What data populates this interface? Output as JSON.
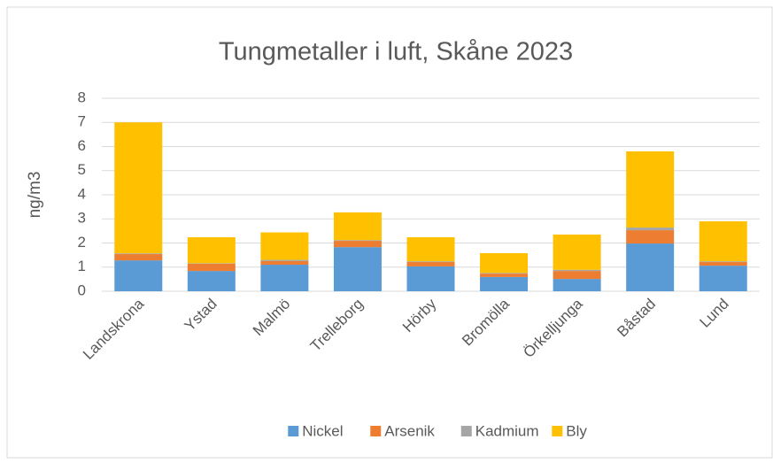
{
  "chart_data": {
    "type": "stacked_bar",
    "title": "Tungmetaller i luft, Skåne 2023",
    "y_label": "ng/m3",
    "categories": [
      "Landskrona",
      "Ystad",
      "Malmö",
      "Trelleborg",
      "Hörby",
      "Bromölla",
      "Örkelljunga",
      "Båstad",
      "Lund"
    ],
    "series": [
      {
        "name": "Nickel",
        "color": "#5b9bd5",
        "values": [
          1.28,
          0.84,
          1.1,
          1.83,
          1.03,
          0.59,
          0.51,
          1.98,
          1.06
        ]
      },
      {
        "name": "Arsenik",
        "color": "#ed7d31",
        "values": [
          0.26,
          0.3,
          0.15,
          0.26,
          0.18,
          0.14,
          0.33,
          0.55,
          0.15
        ]
      },
      {
        "name": "Kadmium",
        "color": "#a5a5a5",
        "values": [
          0.03,
          0.02,
          0.05,
          0.03,
          0.03,
          0.03,
          0.05,
          0.11,
          0.03
        ]
      },
      {
        "name": "Bly",
        "color": "#ffc000",
        "values": [
          5.43,
          1.08,
          1.14,
          1.15,
          1.0,
          0.82,
          1.46,
          3.16,
          1.66
        ]
      }
    ],
    "ylim": [
      0,
      8
    ],
    "yticks": [
      0,
      1,
      2,
      3,
      4,
      5,
      6,
      7,
      8
    ],
    "grid": true,
    "legend": "bottom"
  }
}
